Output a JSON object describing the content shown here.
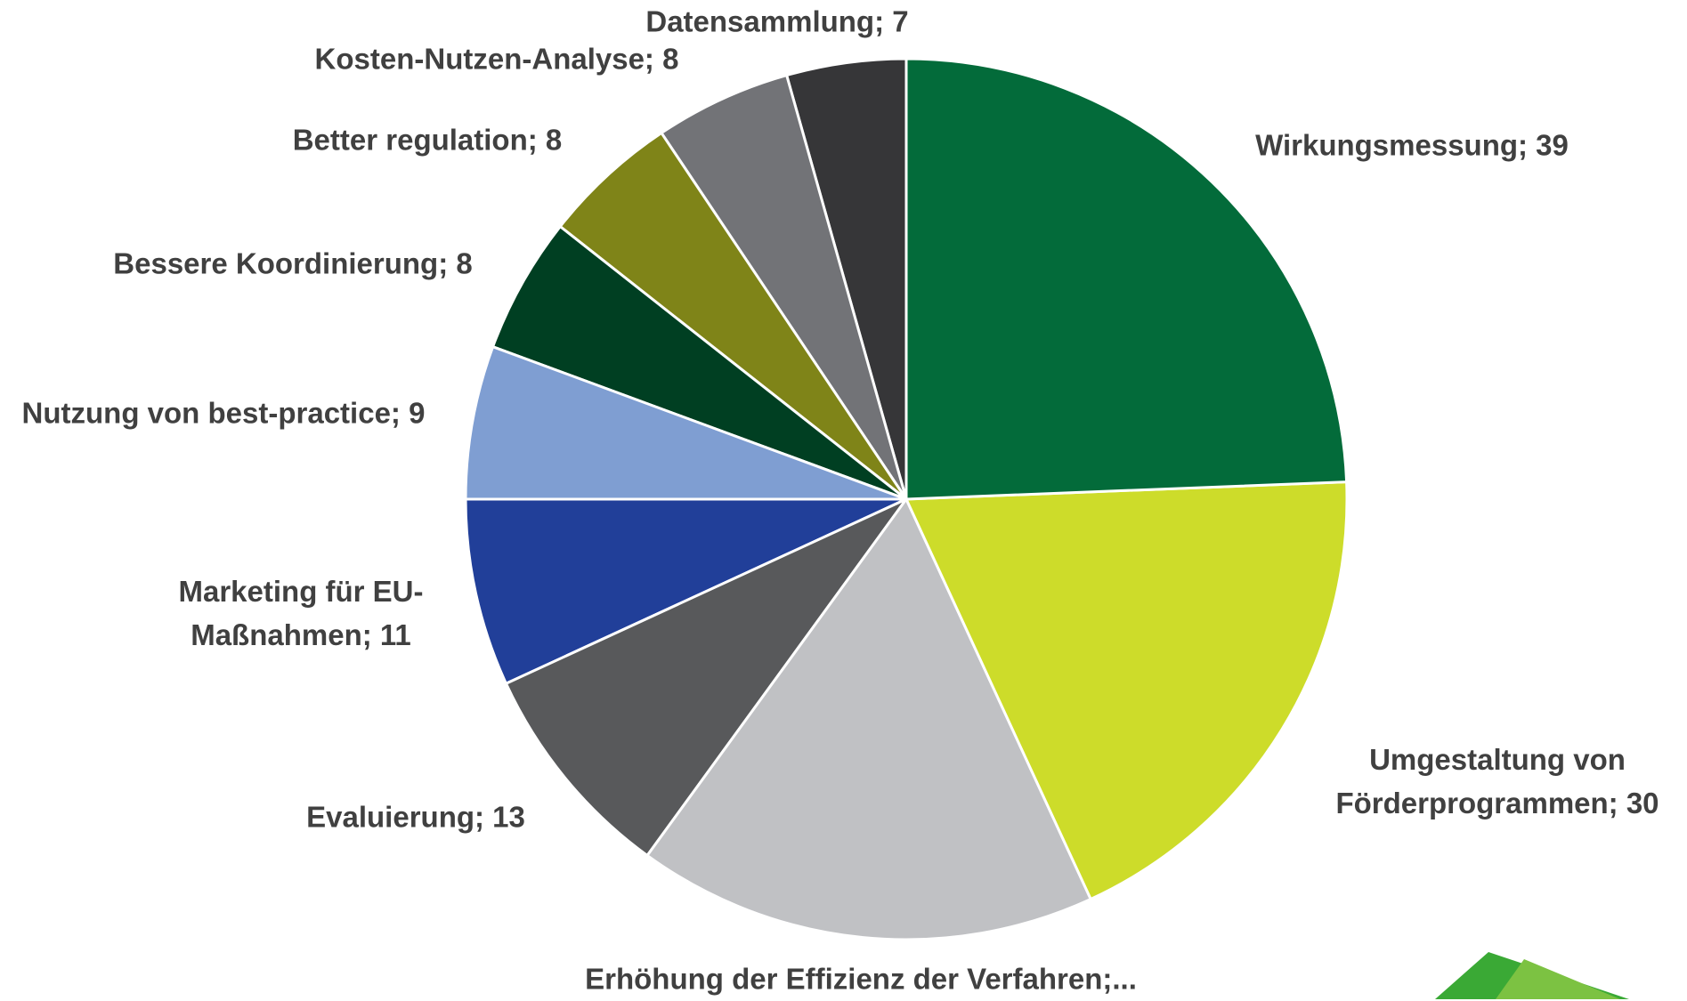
{
  "chart_data": {
    "type": "pie",
    "values": [
      39,
      30,
      27,
      13,
      11,
      9,
      8,
      8,
      8,
      7
    ],
    "value_labels": [
      "Wirkungsmessung; 39",
      "Umgestaltung von Förderprogrammen; 30",
      "Erhöhung der Effizienz der Verfahren;...",
      "Evaluierung; 13",
      "Marketing für EU-Maßnahmen; 11",
      "Nutzung von best-practice; 9",
      "Bessere Koordinierung; 8",
      "Better regulation; 8",
      "Kosten-Nutzen-Analyse; 8",
      "Datensammlung; 7"
    ],
    "colors": [
      "#036b3a",
      "#cddc2a",
      "#c0c1c4",
      "#58595b",
      "#213f99",
      "#7f9ed2",
      "#003f22",
      "#7f8418",
      "#727377",
      "#363638"
    ]
  }
}
